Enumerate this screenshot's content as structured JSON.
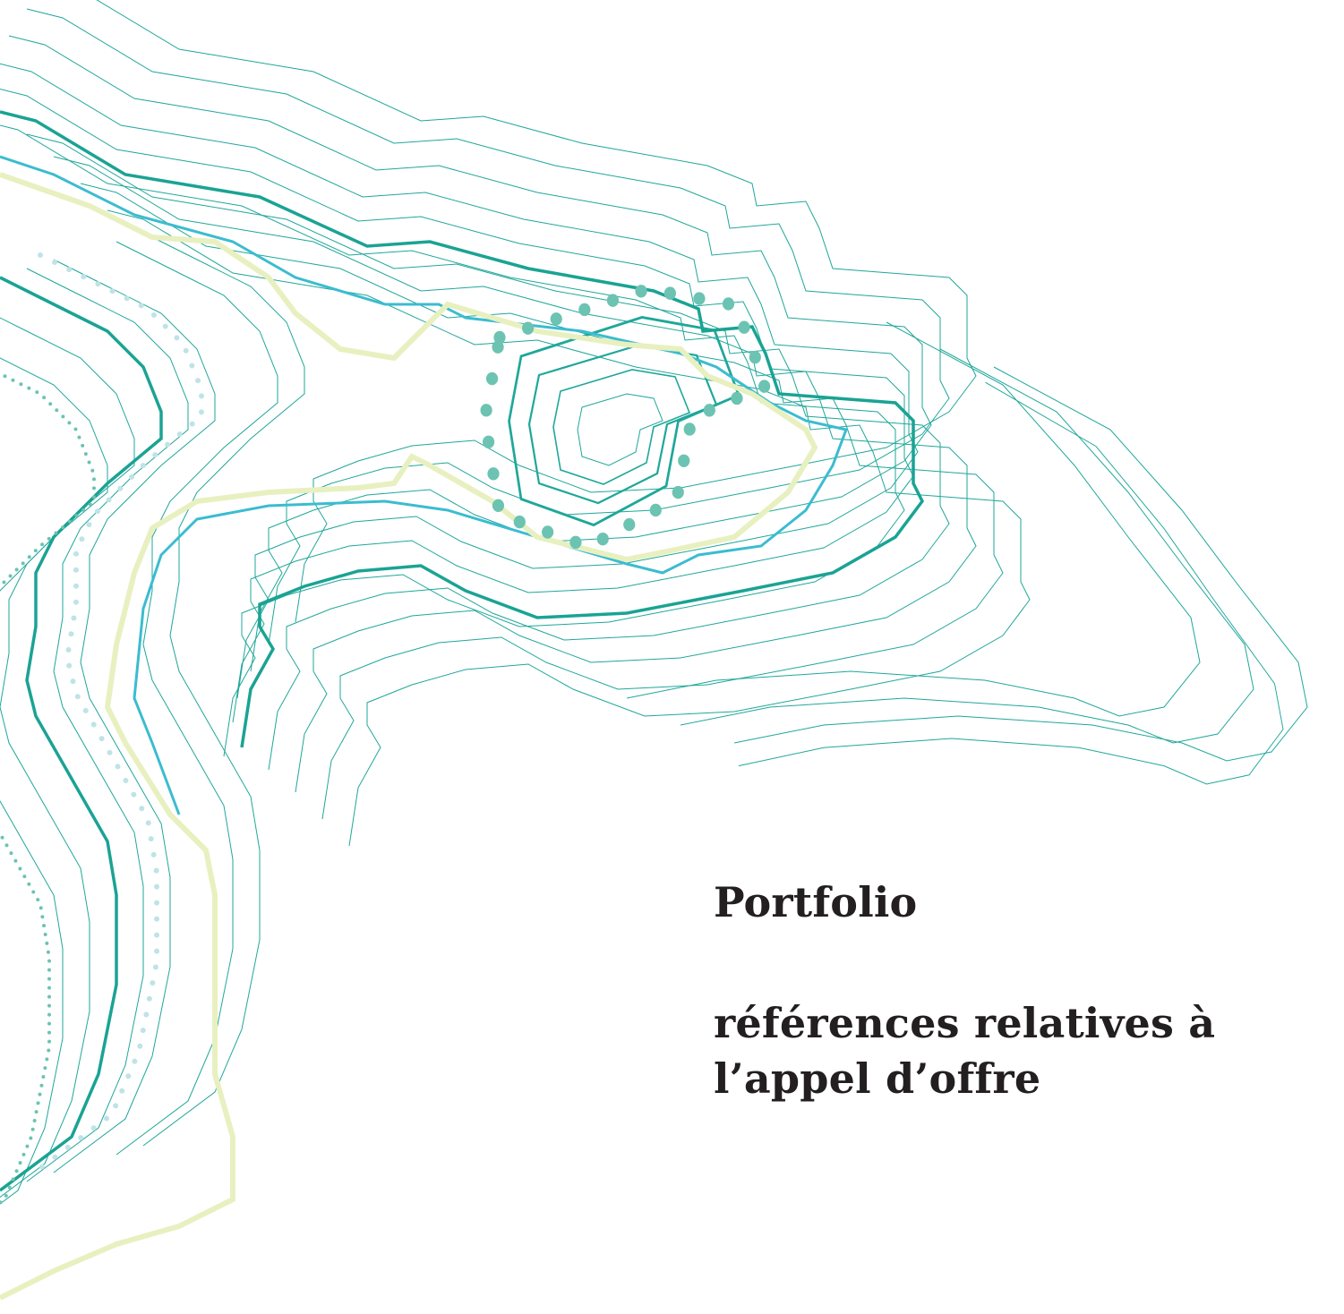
{
  "cover": {
    "title": "Portfolio",
    "subtitle": [
      "références relatives à",
      "l’appel d’offre"
    ]
  }
}
